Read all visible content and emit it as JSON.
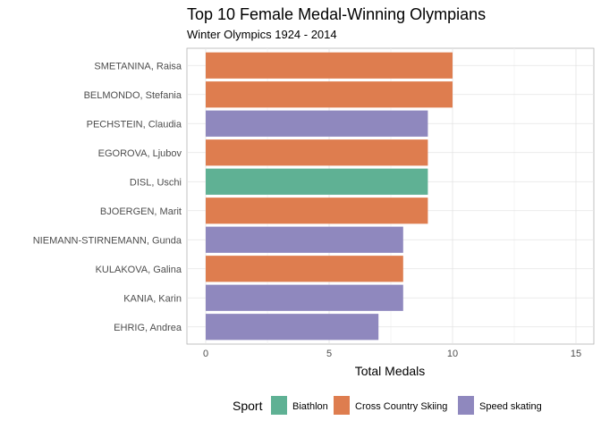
{
  "chart_data": {
    "type": "bar",
    "orientation": "horizontal",
    "title": "Top 10 Female Medal-Winning Olympians",
    "subtitle": "Winter Olympics 1924 - 2014",
    "xlabel": "Total Medals",
    "ylabel": "",
    "xlim": [
      0,
      15
    ],
    "x_ticks": [
      "0",
      "5",
      "10",
      "15"
    ],
    "grid": true,
    "legend": {
      "title": "Sport",
      "position": "bottom",
      "entries": [
        "Biathlon",
        "Cross Country Skiing",
        "Speed skating"
      ]
    },
    "colors": {
      "Biathlon": "#5fb194",
      "Cross Country Skiing": "#de7d4f",
      "Speed skating": "#8f88be"
    },
    "categories": [
      "SMETANINA, Raisa",
      "BELMONDO, Stefania",
      "PECHSTEIN, Claudia",
      "EGOROVA, Ljubov",
      "DISL, Uschi",
      "BJOERGEN, Marit",
      "NIEMANN-STIRNEMANN, Gunda",
      "KULAKOVA, Galina",
      "KANIA, Karin",
      "EHRIG, Andrea"
    ],
    "values": [
      10,
      10,
      9,
      9,
      9,
      9,
      8,
      8,
      8,
      7
    ],
    "sport": [
      "Cross Country Skiing",
      "Cross Country Skiing",
      "Speed skating",
      "Cross Country Skiing",
      "Biathlon",
      "Cross Country Skiing",
      "Speed skating",
      "Cross Country Skiing",
      "Speed skating",
      "Speed skating"
    ]
  }
}
